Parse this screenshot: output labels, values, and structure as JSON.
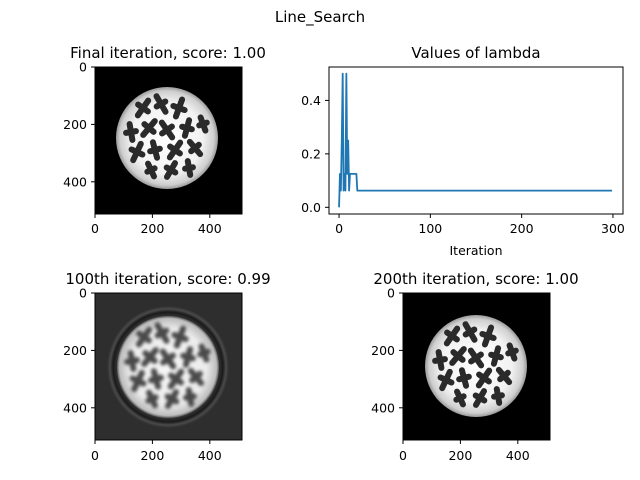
{
  "figure": {
    "suptitle": "Line_Search"
  },
  "chart_data": [
    {
      "type": "image",
      "title": "Final iteration, score: 1.00",
      "xticks": [
        "0",
        "200",
        "400"
      ],
      "yticks": [
        "0",
        "200",
        "400"
      ],
      "image_extent": [
        0,
        512
      ],
      "background": "#000000",
      "image_description": "disk phantom with dark cross-shaped inclusions"
    },
    {
      "type": "line",
      "title": "Values of lambda",
      "xlabel": "Iteration",
      "ylabel": "",
      "xlim": [
        -11,
        311
      ],
      "ylim": [
        -0.025,
        0.525
      ],
      "xticks": [
        "0",
        "100",
        "200",
        "300"
      ],
      "yticks": [
        "0.0",
        "0.2",
        "0.4"
      ],
      "color": "#1f77b4",
      "series": [
        {
          "name": "lambda",
          "x": [
            0,
            1,
            2,
            3,
            4,
            5,
            6,
            7,
            8,
            9,
            10,
            11,
            12,
            13,
            14,
            15,
            16,
            17,
            18,
            19,
            20,
            21,
            22,
            23,
            24,
            299
          ],
          "y": [
            0.0,
            0.125,
            0.0625,
            0.25,
            0.5,
            0.0625,
            0.125,
            0.0625,
            0.5,
            0.125,
            0.25,
            0.0625,
            0.125,
            0.125,
            0.125,
            0.125,
            0.125,
            0.125,
            0.125,
            0.125,
            0.0625,
            0.0625,
            0.0625,
            0.0625,
            0.0625,
            0.0625
          ]
        }
      ]
    },
    {
      "type": "image",
      "title": "100th iteration, score: 0.99",
      "xticks": [
        "0",
        "200",
        "400"
      ],
      "yticks": [
        "0",
        "200",
        "400"
      ],
      "image_extent": [
        0,
        512
      ],
      "background": "#2e2e2e",
      "image_description": "blurred disk phantom with halo ring"
    },
    {
      "type": "image",
      "title": "200th iteration, score: 1.00",
      "xticks": [
        "0",
        "200",
        "400"
      ],
      "yticks": [
        "0",
        "200",
        "400"
      ],
      "image_extent": [
        0,
        512
      ],
      "background": "#000000",
      "image_description": "disk phantom with dark cross-shaped inclusions"
    }
  ]
}
